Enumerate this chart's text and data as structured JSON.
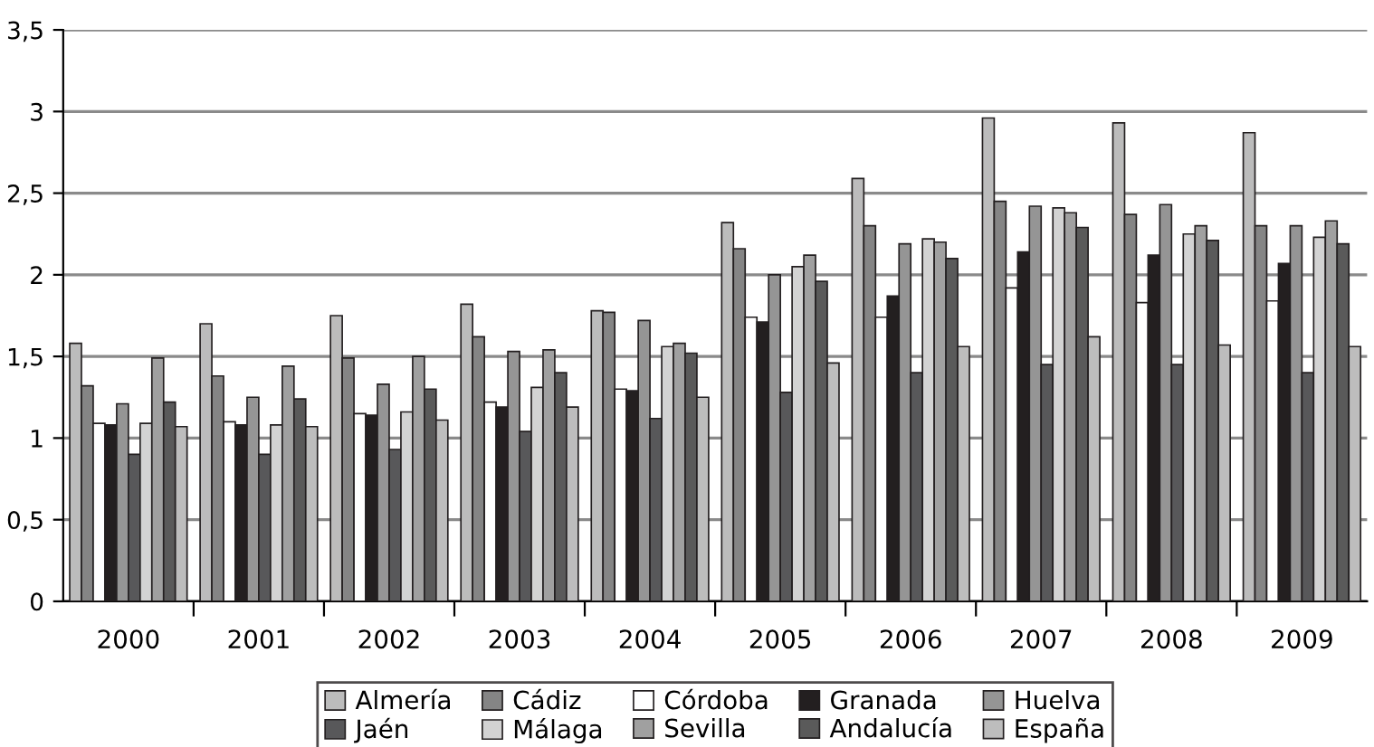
{
  "chart_data": {
    "type": "bar",
    "categories": [
      "2000",
      "2001",
      "2002",
      "2003",
      "2004",
      "2005",
      "2006",
      "2007",
      "2008",
      "2009"
    ],
    "series": [
      {
        "name": "Almería",
        "color": "#bcbcbc",
        "values": [
          1.58,
          1.7,
          1.75,
          1.82,
          1.78,
          2.32,
          2.59,
          2.96,
          2.93,
          2.87
        ]
      },
      {
        "name": "Cádiz",
        "color": "#858585",
        "values": [
          1.32,
          1.38,
          1.49,
          1.62,
          1.77,
          2.16,
          2.3,
          2.45,
          2.37,
          2.3
        ]
      },
      {
        "name": "Córdoba",
        "color": "#ffffff",
        "values": [
          1.09,
          1.1,
          1.15,
          1.22,
          1.3,
          1.74,
          1.74,
          1.92,
          1.83,
          1.84
        ]
      },
      {
        "name": "Granada",
        "color": "#231f20",
        "values": [
          1.08,
          1.08,
          1.14,
          1.19,
          1.29,
          1.71,
          1.87,
          2.14,
          2.12,
          2.07
        ]
      },
      {
        "name": "Huelva",
        "color": "#959595",
        "values": [
          1.21,
          1.25,
          1.33,
          1.53,
          1.72,
          2.0,
          2.19,
          2.42,
          2.43,
          2.3
        ]
      },
      {
        "name": "Jaén",
        "color": "#58585a",
        "values": [
          0.9,
          0.9,
          0.93,
          1.04,
          1.12,
          1.28,
          1.4,
          1.45,
          1.45,
          1.4
        ]
      },
      {
        "name": "Málaga",
        "color": "#d3d3d3",
        "values": [
          1.09,
          1.08,
          1.16,
          1.31,
          1.56,
          2.05,
          2.22,
          2.41,
          2.25,
          2.23
        ]
      },
      {
        "name": "Sevilla",
        "color": "#a0a0a0",
        "values": [
          1.49,
          1.44,
          1.5,
          1.54,
          1.58,
          2.12,
          2.2,
          2.38,
          2.3,
          2.33
        ]
      },
      {
        "name": "Andalucía",
        "color": "#5a5a5a",
        "values": [
          1.22,
          1.24,
          1.3,
          1.4,
          1.52,
          1.96,
          2.1,
          2.29,
          2.21,
          2.19
        ]
      },
      {
        "name": "España",
        "color": "#bdbdbd",
        "values": [
          1.07,
          1.07,
          1.11,
          1.19,
          1.25,
          1.46,
          1.56,
          1.62,
          1.57,
          1.56
        ]
      }
    ],
    "ylim": [
      0,
      3.5
    ],
    "yticks": [
      0,
      {
        "value": 0.5,
        "label": "0,5"
      },
      1,
      {
        "value": 1.5,
        "label": "1,5"
      },
      2,
      {
        "value": 2.5,
        "label": "2,5"
      },
      3,
      {
        "value": 3.5,
        "label": "3,5"
      }
    ],
    "grid": "y",
    "legend": "bottom"
  }
}
